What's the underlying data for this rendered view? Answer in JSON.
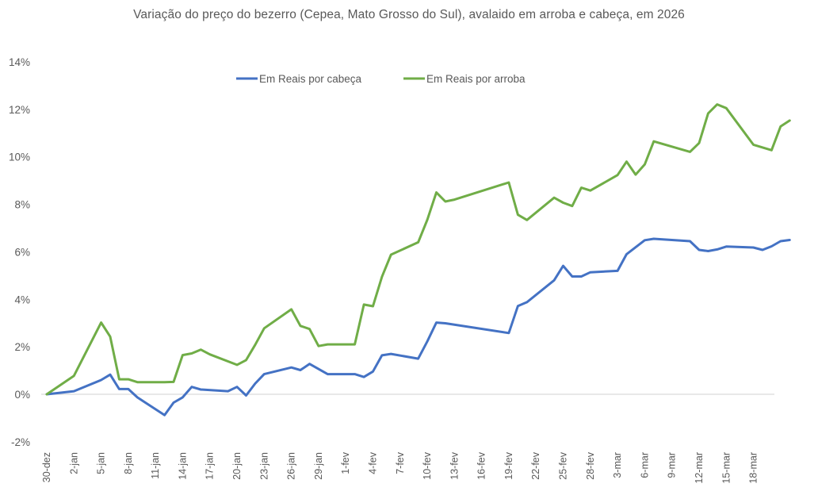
{
  "chart_data": {
    "type": "line",
    "title": "Variação do preço do bezerro (Cepea, Mato Grosso do Sul), avalaido em arroba e cabeça, em 2026",
    "xlabel": "",
    "ylabel": "",
    "ylim": [
      -0.02,
      0.14
    ],
    "y_ticks": [
      "-2%",
      "0%",
      "2%",
      "4%",
      "6%",
      "8%",
      "10%",
      "12%",
      "14%"
    ],
    "y_tick_values": [
      -0.02,
      0,
      0.02,
      0.04,
      0.06,
      0.08,
      0.1,
      0.12,
      0.14
    ],
    "x_ticks": [
      "30-dez",
      "2-jan",
      "5-jan",
      "8-jan",
      "11-jan",
      "14-jan",
      "17-jan",
      "20-jan",
      "23-jan",
      "26-jan",
      "29-jan",
      "1-fev",
      "4-fev",
      "7-fev",
      "10-fev",
      "13-fev",
      "16-fev",
      "19-fev",
      "22-fev",
      "25-fev",
      "28-fev",
      "3-mar",
      "6-mar",
      "9-mar",
      "12-mar",
      "15-mar",
      "18-mar"
    ],
    "x_tick_day_offsets": [
      0,
      3,
      6,
      9,
      12,
      15,
      18,
      21,
      24,
      27,
      30,
      33,
      36,
      39,
      42,
      45,
      48,
      51,
      54,
      57,
      60,
      63,
      66,
      69,
      72,
      75,
      78
    ],
    "grid": false,
    "zero_line": true,
    "legend_position": "top",
    "series": [
      {
        "name": "Em Reais por cabeça",
        "color": "#4472C4",
        "points": [
          [
            0,
            0.0
          ],
          [
            3,
            0.0013
          ],
          [
            6,
            0.006
          ],
          [
            7,
            0.0083
          ],
          [
            8,
            0.0022
          ],
          [
            9,
            0.0022
          ],
          [
            10,
            -0.0013
          ],
          [
            13,
            -0.0088
          ],
          [
            14,
            -0.0035
          ],
          [
            15,
            -0.0013
          ],
          [
            16,
            0.0031
          ],
          [
            17,
            0.002
          ],
          [
            20,
            0.0013
          ],
          [
            21,
            0.0031
          ],
          [
            22,
            -0.0005
          ],
          [
            23,
            0.0045
          ],
          [
            24,
            0.0085
          ],
          [
            27,
            0.0113
          ],
          [
            28,
            0.0102
          ],
          [
            29,
            0.0128
          ],
          [
            31,
            0.0085
          ],
          [
            34,
            0.0085
          ],
          [
            35,
            0.0073
          ],
          [
            36,
            0.0096
          ],
          [
            37,
            0.0164
          ],
          [
            38,
            0.017
          ],
          [
            41,
            0.015
          ],
          [
            42,
            0.0223
          ],
          [
            43,
            0.0302
          ],
          [
            44,
            0.0299
          ],
          [
            51,
            0.0258
          ],
          [
            52,
            0.0372
          ],
          [
            53,
            0.0388
          ],
          [
            56,
            0.048
          ],
          [
            57,
            0.0541
          ],
          [
            58,
            0.0496
          ],
          [
            59,
            0.0496
          ],
          [
            60,
            0.0514
          ],
          [
            63,
            0.052
          ],
          [
            64,
            0.059
          ],
          [
            66,
            0.0649
          ],
          [
            67,
            0.0655
          ],
          [
            71,
            0.0645
          ],
          [
            72,
            0.0608
          ],
          [
            73,
            0.0603
          ],
          [
            74,
            0.061
          ],
          [
            75,
            0.0622
          ],
          [
            78,
            0.0618
          ],
          [
            79,
            0.0608
          ],
          [
            80,
            0.0623
          ],
          [
            81,
            0.0645
          ],
          [
            82,
            0.065
          ]
        ]
      },
      {
        "name": "Em Reais por arroba",
        "color": "#70AD47",
        "points": [
          [
            0,
            0.0
          ],
          [
            3,
            0.0078
          ],
          [
            6,
            0.0302
          ],
          [
            7,
            0.0243
          ],
          [
            8,
            0.0063
          ],
          [
            9,
            0.0063
          ],
          [
            10,
            0.0051
          ],
          [
            13,
            0.0051
          ],
          [
            14,
            0.0052
          ],
          [
            15,
            0.0165
          ],
          [
            16,
            0.0172
          ],
          [
            17,
            0.0188
          ],
          [
            18,
            0.0168
          ],
          [
            21,
            0.0124
          ],
          [
            22,
            0.0144
          ],
          [
            23,
            0.0208
          ],
          [
            24,
            0.0278
          ],
          [
            27,
            0.0358
          ],
          [
            28,
            0.0288
          ],
          [
            29,
            0.0275
          ],
          [
            30,
            0.0203
          ],
          [
            31,
            0.021
          ],
          [
            34,
            0.021
          ],
          [
            35,
            0.0378
          ],
          [
            36,
            0.0371
          ],
          [
            37,
            0.0495
          ],
          [
            38,
            0.0588
          ],
          [
            41,
            0.064
          ],
          [
            42,
            0.0735
          ],
          [
            43,
            0.085
          ],
          [
            44,
            0.0812
          ],
          [
            45,
            0.082
          ],
          [
            51,
            0.0892
          ],
          [
            52,
            0.0756
          ],
          [
            53,
            0.0734
          ],
          [
            56,
            0.0828
          ],
          [
            57,
            0.0807
          ],
          [
            58,
            0.0793
          ],
          [
            59,
            0.087
          ],
          [
            60,
            0.0858
          ],
          [
            63,
            0.0923
          ],
          [
            64,
            0.098
          ],
          [
            65,
            0.0925
          ],
          [
            66,
            0.0968
          ],
          [
            67,
            0.1065
          ],
          [
            71,
            0.1021
          ],
          [
            72,
            0.1058
          ],
          [
            73,
            0.1183
          ],
          [
            74,
            0.1221
          ],
          [
            75,
            0.1205
          ],
          [
            78,
            0.1051
          ],
          [
            80,
            0.1028
          ],
          [
            81,
            0.1128
          ],
          [
            82,
            0.1153
          ]
        ]
      }
    ]
  },
  "legend": {
    "items": [
      {
        "label": "Em Reais por cabeça",
        "color": "#4472C4"
      },
      {
        "label": "Em Reais por arroba",
        "color": "#70AD47"
      }
    ]
  }
}
